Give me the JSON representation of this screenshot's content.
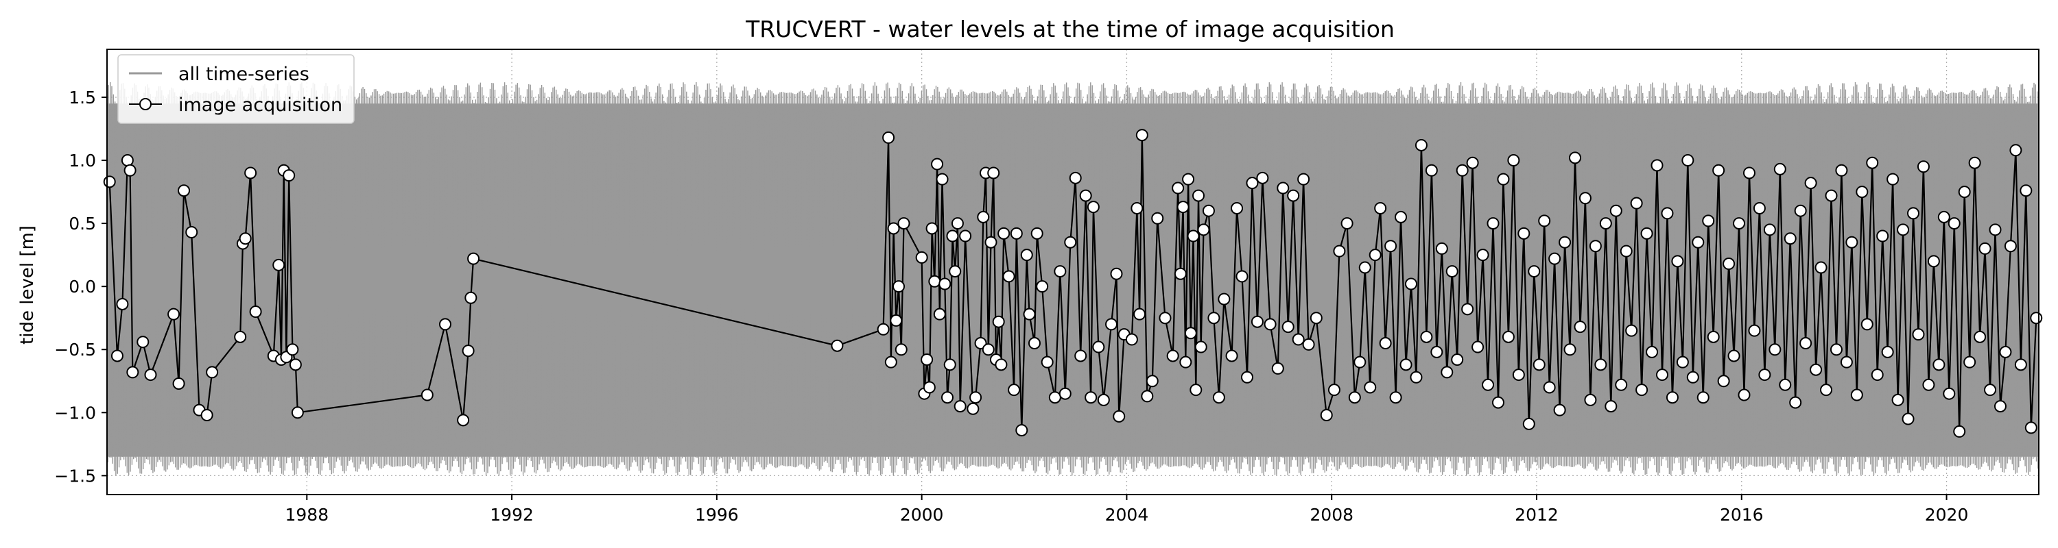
{
  "chart_data": {
    "type": "line",
    "title": "TRUCVERT - water levels at the time of image acquisition",
    "xlabel": "",
    "ylabel": "tide level [m]",
    "xlim": [
      1984.1,
      2021.8
    ],
    "ylim": [
      -1.65,
      1.88
    ],
    "x_ticks": [
      1988,
      1992,
      1996,
      2000,
      2004,
      2008,
      2012,
      2016,
      2020
    ],
    "x_tick_labels": [
      "1988",
      "1992",
      "1996",
      "2000",
      "2004",
      "2008",
      "2012",
      "2016",
      "2020"
    ],
    "y_ticks": [
      -1.5,
      -1.0,
      -0.5,
      0.0,
      0.5,
      1.0,
      1.5
    ],
    "y_tick_labels": [
      "−1.5",
      "−1.0",
      "−0.5",
      "0.0",
      "0.5",
      "1.0",
      "1.5"
    ],
    "grid": "dotted",
    "legend": {
      "placement": "top-left",
      "entries": [
        "all time-series",
        "image acquisition"
      ]
    },
    "series": [
      {
        "name": "all time-series",
        "style": "grey-band",
        "color": "#999999",
        "x_range": [
          1984.1,
          2021.8
        ],
        "typical_high": 1.45,
        "typical_low": -1.35,
        "max_high": 1.62,
        "min_low": -1.5
      },
      {
        "name": "image acquisition",
        "style": "line-with-open-markers",
        "color": "#000000",
        "marker_fill": "#ffffff",
        "points": [
          [
            1984.15,
            0.83
          ],
          [
            1984.3,
            -0.55
          ],
          [
            1984.4,
            -0.14
          ],
          [
            1984.5,
            1.0
          ],
          [
            1984.55,
            0.92
          ],
          [
            1984.6,
            -0.68
          ],
          [
            1984.8,
            -0.44
          ],
          [
            1984.95,
            -0.7
          ],
          [
            1985.4,
            -0.22
          ],
          [
            1985.5,
            -0.77
          ],
          [
            1985.6,
            0.76
          ],
          [
            1985.75,
            0.43
          ],
          [
            1985.9,
            -0.98
          ],
          [
            1986.05,
            -1.02
          ],
          [
            1986.15,
            -0.68
          ],
          [
            1986.7,
            -0.4
          ],
          [
            1986.75,
            0.34
          ],
          [
            1986.8,
            0.38
          ],
          [
            1986.9,
            0.9
          ],
          [
            1987.0,
            -0.2
          ],
          [
            1987.35,
            -0.55
          ],
          [
            1987.45,
            0.17
          ],
          [
            1987.5,
            -0.58
          ],
          [
            1987.55,
            0.92
          ],
          [
            1987.6,
            -0.56
          ],
          [
            1987.65,
            0.88
          ],
          [
            1987.72,
            -0.5
          ],
          [
            1987.78,
            -0.62
          ],
          [
            1987.82,
            -1.0
          ],
          [
            1990.35,
            -0.86
          ],
          [
            1990.7,
            -0.3
          ],
          [
            1991.05,
            -1.06
          ],
          [
            1991.15,
            -0.51
          ],
          [
            1991.2,
            -0.09
          ],
          [
            1991.25,
            0.22
          ],
          [
            1998.35,
            -0.47
          ],
          [
            1999.25,
            -0.34
          ],
          [
            1999.35,
            1.18
          ],
          [
            1999.4,
            -0.6
          ],
          [
            1999.45,
            0.46
          ],
          [
            1999.5,
            -0.27
          ],
          [
            1999.55,
            0.0
          ],
          [
            1999.6,
            -0.5
          ],
          [
            1999.65,
            0.5
          ],
          [
            2000.0,
            0.23
          ],
          [
            2000.05,
            -0.85
          ],
          [
            2000.1,
            -0.58
          ],
          [
            2000.15,
            -0.8
          ],
          [
            2000.2,
            0.46
          ],
          [
            2000.25,
            0.04
          ],
          [
            2000.3,
            0.97
          ],
          [
            2000.35,
            -0.22
          ],
          [
            2000.4,
            0.85
          ],
          [
            2000.45,
            0.02
          ],
          [
            2000.5,
            -0.88
          ],
          [
            2000.55,
            -0.62
          ],
          [
            2000.6,
            0.4
          ],
          [
            2000.65,
            0.12
          ],
          [
            2000.7,
            0.5
          ],
          [
            2000.75,
            -0.95
          ],
          [
            2000.85,
            0.4
          ],
          [
            2001.0,
            -0.97
          ],
          [
            2001.05,
            -0.88
          ],
          [
            2001.15,
            -0.45
          ],
          [
            2001.2,
            0.55
          ],
          [
            2001.25,
            0.9
          ],
          [
            2001.3,
            -0.5
          ],
          [
            2001.35,
            0.35
          ],
          [
            2001.4,
            0.9
          ],
          [
            2001.45,
            -0.58
          ],
          [
            2001.5,
            -0.28
          ],
          [
            2001.55,
            -0.62
          ],
          [
            2001.6,
            0.42
          ],
          [
            2001.7,
            0.08
          ],
          [
            2001.8,
            -0.82
          ],
          [
            2001.85,
            0.42
          ],
          [
            2001.95,
            -1.14
          ],
          [
            2002.05,
            0.25
          ],
          [
            2002.1,
            -0.22
          ],
          [
            2002.2,
            -0.45
          ],
          [
            2002.25,
            0.42
          ],
          [
            2002.35,
            0.0
          ],
          [
            2002.45,
            -0.6
          ],
          [
            2002.6,
            -0.88
          ],
          [
            2002.7,
            0.12
          ],
          [
            2002.8,
            -0.85
          ],
          [
            2002.9,
            0.35
          ],
          [
            2003.0,
            0.86
          ],
          [
            2003.1,
            -0.55
          ],
          [
            2003.2,
            0.72
          ],
          [
            2003.3,
            -0.88
          ],
          [
            2003.35,
            0.63
          ],
          [
            2003.45,
            -0.48
          ],
          [
            2003.55,
            -0.9
          ],
          [
            2003.7,
            -0.3
          ],
          [
            2003.8,
            0.1
          ],
          [
            2003.85,
            -1.03
          ],
          [
            2003.95,
            -0.38
          ],
          [
            2004.1,
            -0.42
          ],
          [
            2004.2,
            0.62
          ],
          [
            2004.25,
            -0.22
          ],
          [
            2004.3,
            1.2
          ],
          [
            2004.4,
            -0.87
          ],
          [
            2004.5,
            -0.75
          ],
          [
            2004.6,
            0.54
          ],
          [
            2004.75,
            -0.25
          ],
          [
            2004.9,
            -0.55
          ],
          [
            2005.0,
            0.78
          ],
          [
            2005.05,
            0.1
          ],
          [
            2005.1,
            0.63
          ],
          [
            2005.15,
            -0.6
          ],
          [
            2005.2,
            0.85
          ],
          [
            2005.25,
            -0.37
          ],
          [
            2005.3,
            0.4
          ],
          [
            2005.35,
            -0.82
          ],
          [
            2005.4,
            0.72
          ],
          [
            2005.45,
            -0.48
          ],
          [
            2005.5,
            0.45
          ],
          [
            2005.6,
            0.6
          ],
          [
            2005.7,
            -0.25
          ],
          [
            2005.8,
            -0.88
          ],
          [
            2005.9,
            -0.1
          ],
          [
            2006.05,
            -0.55
          ],
          [
            2006.15,
            0.62
          ],
          [
            2006.25,
            0.08
          ],
          [
            2006.35,
            -0.72
          ],
          [
            2006.45,
            0.82
          ],
          [
            2006.55,
            -0.28
          ],
          [
            2006.65,
            0.86
          ],
          [
            2006.8,
            -0.3
          ],
          [
            2006.95,
            -0.65
          ],
          [
            2007.05,
            0.78
          ],
          [
            2007.15,
            -0.32
          ],
          [
            2007.25,
            0.72
          ],
          [
            2007.35,
            -0.42
          ],
          [
            2007.45,
            0.85
          ],
          [
            2007.55,
            -0.46
          ],
          [
            2007.7,
            -0.25
          ],
          [
            2007.9,
            -1.02
          ],
          [
            2008.05,
            -0.82
          ],
          [
            2008.15,
            0.28
          ],
          [
            2008.3,
            0.5
          ],
          [
            2008.45,
            -0.88
          ],
          [
            2008.55,
            -0.6
          ],
          [
            2008.65,
            0.15
          ],
          [
            2008.75,
            -0.8
          ],
          [
            2008.85,
            0.25
          ],
          [
            2008.95,
            0.62
          ],
          [
            2009.05,
            -0.45
          ],
          [
            2009.15,
            0.32
          ],
          [
            2009.25,
            -0.88
          ],
          [
            2009.35,
            0.55
          ],
          [
            2009.45,
            -0.62
          ],
          [
            2009.55,
            0.02
          ],
          [
            2009.65,
            -0.72
          ],
          [
            2009.75,
            1.12
          ],
          [
            2009.85,
            -0.4
          ],
          [
            2009.95,
            0.92
          ],
          [
            2010.05,
            -0.52
          ],
          [
            2010.15,
            0.3
          ],
          [
            2010.25,
            -0.68
          ],
          [
            2010.35,
            0.12
          ],
          [
            2010.45,
            -0.58
          ],
          [
            2010.55,
            0.92
          ],
          [
            2010.65,
            -0.18
          ],
          [
            2010.75,
            0.98
          ],
          [
            2010.85,
            -0.48
          ],
          [
            2010.95,
            0.25
          ],
          [
            2011.05,
            -0.78
          ],
          [
            2011.15,
            0.5
          ],
          [
            2011.25,
            -0.92
          ],
          [
            2011.35,
            0.85
          ],
          [
            2011.45,
            -0.4
          ],
          [
            2011.55,
            1.0
          ],
          [
            2011.65,
            -0.7
          ],
          [
            2011.75,
            0.42
          ],
          [
            2011.85,
            -1.09
          ],
          [
            2011.95,
            0.12
          ],
          [
            2012.05,
            -0.62
          ],
          [
            2012.15,
            0.52
          ],
          [
            2012.25,
            -0.8
          ],
          [
            2012.35,
            0.22
          ],
          [
            2012.45,
            -0.98
          ],
          [
            2012.55,
            0.35
          ],
          [
            2012.65,
            -0.5
          ],
          [
            2012.75,
            1.02
          ],
          [
            2012.85,
            -0.32
          ],
          [
            2012.95,
            0.7
          ],
          [
            2013.05,
            -0.9
          ],
          [
            2013.15,
            0.32
          ],
          [
            2013.25,
            -0.62
          ],
          [
            2013.35,
            0.5
          ],
          [
            2013.45,
            -0.95
          ],
          [
            2013.55,
            0.6
          ],
          [
            2013.65,
            -0.78
          ],
          [
            2013.75,
            0.28
          ],
          [
            2013.85,
            -0.35
          ],
          [
            2013.95,
            0.66
          ],
          [
            2014.05,
            -0.82
          ],
          [
            2014.15,
            0.42
          ],
          [
            2014.25,
            -0.52
          ],
          [
            2014.35,
            0.96
          ],
          [
            2014.45,
            -0.7
          ],
          [
            2014.55,
            0.58
          ],
          [
            2014.65,
            -0.88
          ],
          [
            2014.75,
            0.2
          ],
          [
            2014.85,
            -0.6
          ],
          [
            2014.95,
            1.0
          ],
          [
            2015.05,
            -0.72
          ],
          [
            2015.15,
            0.35
          ],
          [
            2015.25,
            -0.88
          ],
          [
            2015.35,
            0.52
          ],
          [
            2015.45,
            -0.4
          ],
          [
            2015.55,
            0.92
          ],
          [
            2015.65,
            -0.75
          ],
          [
            2015.75,
            0.18
          ],
          [
            2015.85,
            -0.55
          ],
          [
            2015.95,
            0.5
          ],
          [
            2016.05,
            -0.86
          ],
          [
            2016.15,
            0.9
          ],
          [
            2016.25,
            -0.35
          ],
          [
            2016.35,
            0.62
          ],
          [
            2016.45,
            -0.7
          ],
          [
            2016.55,
            0.45
          ],
          [
            2016.65,
            -0.5
          ],
          [
            2016.75,
            0.93
          ],
          [
            2016.85,
            -0.78
          ],
          [
            2016.95,
            0.38
          ],
          [
            2017.05,
            -0.92
          ],
          [
            2017.15,
            0.6
          ],
          [
            2017.25,
            -0.45
          ],
          [
            2017.35,
            0.82
          ],
          [
            2017.45,
            -0.66
          ],
          [
            2017.55,
            0.15
          ],
          [
            2017.65,
            -0.82
          ],
          [
            2017.75,
            0.72
          ],
          [
            2017.85,
            -0.5
          ],
          [
            2017.95,
            0.92
          ],
          [
            2018.05,
            -0.6
          ],
          [
            2018.15,
            0.35
          ],
          [
            2018.25,
            -0.86
          ],
          [
            2018.35,
            0.75
          ],
          [
            2018.45,
            -0.3
          ],
          [
            2018.55,
            0.98
          ],
          [
            2018.65,
            -0.7
          ],
          [
            2018.75,
            0.4
          ],
          [
            2018.85,
            -0.52
          ],
          [
            2018.95,
            0.85
          ],
          [
            2019.05,
            -0.9
          ],
          [
            2019.15,
            0.45
          ],
          [
            2019.25,
            -1.05
          ],
          [
            2019.35,
            0.58
          ],
          [
            2019.45,
            -0.38
          ],
          [
            2019.55,
            0.95
          ],
          [
            2019.65,
            -0.78
          ],
          [
            2019.75,
            0.2
          ],
          [
            2019.85,
            -0.62
          ],
          [
            2019.95,
            0.55
          ],
          [
            2020.05,
            -0.85
          ],
          [
            2020.15,
            0.5
          ],
          [
            2020.25,
            -1.15
          ],
          [
            2020.35,
            0.75
          ],
          [
            2020.45,
            -0.6
          ],
          [
            2020.55,
            0.98
          ],
          [
            2020.65,
            -0.4
          ],
          [
            2020.75,
            0.3
          ],
          [
            2020.85,
            -0.82
          ],
          [
            2020.95,
            0.45
          ],
          [
            2021.05,
            -0.95
          ],
          [
            2021.15,
            -0.52
          ],
          [
            2021.25,
            0.32
          ],
          [
            2021.35,
            1.08
          ],
          [
            2021.45,
            -0.62
          ],
          [
            2021.55,
            0.76
          ],
          [
            2021.65,
            -1.12
          ],
          [
            2021.75,
            -0.25
          ]
        ]
      }
    ]
  }
}
